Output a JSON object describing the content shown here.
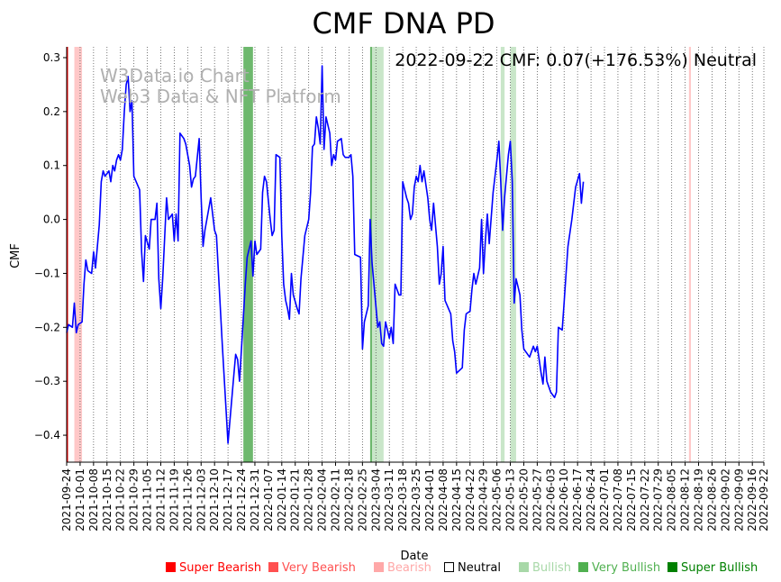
{
  "chart_data": {
    "type": "line",
    "title": "CMF DNA PD",
    "xlabel": "Date",
    "ylabel": "CMF",
    "annotation": "2022-09-22 CMF: 0.07(+176.53%) Neutral",
    "watermark": [
      "W3Data.io Chart",
      "Web3 Data & NFT Platform"
    ],
    "x_range": [
      "2021-09-24",
      "2022-09-22"
    ],
    "ylim": [
      -0.45,
      0.32
    ],
    "yticks": [
      -0.4,
      -0.3,
      -0.2,
      -0.1,
      0.0,
      0.1,
      0.2,
      0.3
    ],
    "ytick_labels": [
      "−0.4",
      "−0.3",
      "−0.2",
      "−0.1",
      "0.0",
      "0.1",
      "0.2",
      "0.3"
    ],
    "xticks": [
      "2021-09-24",
      "2021-10-01",
      "2021-10-08",
      "2021-10-15",
      "2021-10-22",
      "2021-10-29",
      "2021-11-05",
      "2021-11-12",
      "2021-11-19",
      "2021-11-26",
      "2021-12-03",
      "2021-12-10",
      "2021-12-17",
      "2021-12-24",
      "2021-12-31",
      "2022-01-07",
      "2022-01-14",
      "2022-01-21",
      "2022-01-28",
      "2022-02-04",
      "2022-02-11",
      "2022-02-18",
      "2022-02-25",
      "2022-03-04",
      "2022-03-11",
      "2022-03-18",
      "2022-03-25",
      "2022-04-01",
      "2022-04-08",
      "2022-04-15",
      "2022-04-22",
      "2022-04-29",
      "2022-05-06",
      "2022-05-13",
      "2022-05-20",
      "2022-05-27",
      "2022-06-03",
      "2022-06-10",
      "2022-06-17",
      "2022-06-24",
      "2022-07-01",
      "2022-07-08",
      "2022-07-15",
      "2022-07-22",
      "2022-07-29",
      "2022-08-05",
      "2022-08-12",
      "2022-08-19",
      "2022-08-26",
      "2022-09-02",
      "2022-09-09",
      "2022-09-16",
      "2022-09-22"
    ],
    "grid": "vertical-dotted",
    "line_color": "#0000ff",
    "series": [
      {
        "points": [
          [
            "2021-09-24",
            -0.21
          ],
          [
            "2021-09-25",
            -0.195
          ],
          [
            "2021-09-27",
            -0.2
          ],
          [
            "2021-09-28",
            -0.155
          ],
          [
            "2021-09-29",
            -0.21
          ],
          [
            "2021-09-30",
            -0.195
          ],
          [
            "2021-10-02",
            -0.19
          ],
          [
            "2021-10-03",
            -0.12
          ],
          [
            "2021-10-04",
            -0.075
          ],
          [
            "2021-10-05",
            -0.095
          ],
          [
            "2021-10-07",
            -0.1
          ],
          [
            "2021-10-08",
            -0.06
          ],
          [
            "2021-10-09",
            -0.09
          ],
          [
            "2021-10-11",
            -0.01
          ],
          [
            "2021-10-12",
            0.07
          ],
          [
            "2021-10-13",
            0.09
          ],
          [
            "2021-10-14",
            0.08
          ],
          [
            "2021-10-16",
            0.09
          ],
          [
            "2021-10-17",
            0.07
          ],
          [
            "2021-10-18",
            0.1
          ],
          [
            "2021-10-19",
            0.09
          ],
          [
            "2021-10-20",
            0.11
          ],
          [
            "2021-10-21",
            0.12
          ],
          [
            "2021-10-22",
            0.11
          ],
          [
            "2021-10-23",
            0.13
          ],
          [
            "2021-10-24",
            0.2
          ],
          [
            "2021-10-25",
            0.25
          ],
          [
            "2021-10-26",
            0.265
          ],
          [
            "2021-10-27",
            0.2
          ],
          [
            "2021-10-28",
            0.22
          ],
          [
            "2021-10-29",
            0.08
          ],
          [
            "2021-11-01",
            0.055
          ],
          [
            "2021-11-02",
            -0.06
          ],
          [
            "2021-11-03",
            -0.115
          ],
          [
            "2021-11-04",
            -0.03
          ],
          [
            "2021-11-06",
            -0.055
          ],
          [
            "2021-11-07",
            0.0
          ],
          [
            "2021-11-09",
            0.0
          ],
          [
            "2021-11-10",
            0.03
          ],
          [
            "2021-11-11",
            -0.11
          ],
          [
            "2021-11-12",
            -0.165
          ],
          [
            "2021-11-13",
            -0.11
          ],
          [
            "2021-11-15",
            0.04
          ],
          [
            "2021-11-16",
            0.0
          ],
          [
            "2021-11-18",
            0.01
          ],
          [
            "2021-11-19",
            -0.04
          ],
          [
            "2021-11-20",
            0.01
          ],
          [
            "2021-11-21",
            -0.04
          ],
          [
            "2021-11-22",
            0.16
          ],
          [
            "2021-11-24",
            0.15
          ],
          [
            "2021-11-25",
            0.14
          ],
          [
            "2021-11-27",
            0.1
          ],
          [
            "2021-11-28",
            0.06
          ],
          [
            "2021-11-29",
            0.075
          ],
          [
            "2021-11-30",
            0.08
          ],
          [
            "2021-12-02",
            0.15
          ],
          [
            "2021-12-03",
            0.04
          ],
          [
            "2021-12-04",
            -0.05
          ],
          [
            "2021-12-05",
            -0.02
          ],
          [
            "2021-12-08",
            0.04
          ],
          [
            "2021-12-10",
            -0.02
          ],
          [
            "2021-12-11",
            -0.03
          ],
          [
            "2021-12-14",
            -0.23
          ],
          [
            "2021-12-17",
            -0.415
          ],
          [
            "2021-12-20",
            -0.29
          ],
          [
            "2021-12-21",
            -0.25
          ],
          [
            "2021-12-22",
            -0.26
          ],
          [
            "2021-12-23",
            -0.3
          ],
          [
            "2021-12-25",
            -0.18
          ],
          [
            "2021-12-26",
            -0.12
          ],
          [
            "2021-12-27",
            -0.07
          ],
          [
            "2021-12-29",
            -0.04
          ],
          [
            "2021-12-30",
            -0.105
          ],
          [
            "2021-12-31",
            -0.04
          ],
          [
            "2022-01-01",
            -0.065
          ],
          [
            "2022-01-03",
            -0.055
          ],
          [
            "2022-01-04",
            0.05
          ],
          [
            "2022-01-05",
            0.08
          ],
          [
            "2022-01-06",
            0.07
          ],
          [
            "2022-01-08",
            0.0
          ],
          [
            "2022-01-09",
            -0.03
          ],
          [
            "2022-01-10",
            -0.02
          ],
          [
            "2022-01-11",
            0.12
          ],
          [
            "2022-01-13",
            0.115
          ],
          [
            "2022-01-14",
            -0.03
          ],
          [
            "2022-01-15",
            -0.12
          ],
          [
            "2022-01-16",
            -0.15
          ],
          [
            "2022-01-17",
            -0.165
          ],
          [
            "2022-01-18",
            -0.185
          ],
          [
            "2022-01-19",
            -0.1
          ],
          [
            "2022-01-20",
            -0.14
          ],
          [
            "2022-01-22",
            -0.165
          ],
          [
            "2022-01-23",
            -0.175
          ],
          [
            "2022-01-24",
            -0.11
          ],
          [
            "2022-01-26",
            -0.03
          ],
          [
            "2022-01-28",
            0.0
          ],
          [
            "2022-01-29",
            0.05
          ],
          [
            "2022-01-30",
            0.135
          ],
          [
            "2022-01-31",
            0.14
          ],
          [
            "2022-02-01",
            0.19
          ],
          [
            "2022-02-02",
            0.17
          ],
          [
            "2022-02-03",
            0.14
          ],
          [
            "2022-02-04",
            0.285
          ],
          [
            "2022-02-05",
            0.13
          ],
          [
            "2022-02-06",
            0.19
          ],
          [
            "2022-02-07",
            0.175
          ],
          [
            "2022-02-08",
            0.16
          ],
          [
            "2022-02-09",
            0.1
          ],
          [
            "2022-02-10",
            0.12
          ],
          [
            "2022-02-11",
            0.11
          ],
          [
            "2022-02-12",
            0.145
          ],
          [
            "2022-02-14",
            0.15
          ],
          [
            "2022-02-15",
            0.12
          ],
          [
            "2022-02-16",
            0.115
          ],
          [
            "2022-02-18",
            0.115
          ],
          [
            "2022-02-19",
            0.12
          ],
          [
            "2022-02-20",
            0.08
          ],
          [
            "2022-02-21",
            -0.065
          ],
          [
            "2022-02-24",
            -0.07
          ],
          [
            "2022-02-25",
            -0.24
          ],
          [
            "2022-02-26",
            -0.19
          ],
          [
            "2022-02-28",
            -0.16
          ],
          [
            "2022-03-01",
            0.0
          ],
          [
            "2022-03-02",
            -0.08
          ],
          [
            "2022-03-05",
            -0.2
          ],
          [
            "2022-03-06",
            -0.19
          ],
          [
            "2022-03-07",
            -0.23
          ],
          [
            "2022-03-08",
            -0.235
          ],
          [
            "2022-03-09",
            -0.19
          ],
          [
            "2022-03-11",
            -0.22
          ],
          [
            "2022-03-12",
            -0.2
          ],
          [
            "2022-03-13",
            -0.23
          ],
          [
            "2022-03-14",
            -0.12
          ],
          [
            "2022-03-16",
            -0.14
          ],
          [
            "2022-03-17",
            -0.14
          ],
          [
            "2022-03-18",
            0.07
          ],
          [
            "2022-03-20",
            0.04
          ],
          [
            "2022-03-21",
            0.03
          ],
          [
            "2022-03-22",
            0.0
          ],
          [
            "2022-03-23",
            0.01
          ],
          [
            "2022-03-24",
            0.06
          ],
          [
            "2022-03-25",
            0.08
          ],
          [
            "2022-03-26",
            0.07
          ],
          [
            "2022-03-27",
            0.1
          ],
          [
            "2022-03-28",
            0.07
          ],
          [
            "2022-03-29",
            0.09
          ],
          [
            "2022-03-31",
            0.04
          ],
          [
            "2022-04-01",
            0.0
          ],
          [
            "2022-04-02",
            -0.02
          ],
          [
            "2022-04-03",
            0.03
          ],
          [
            "2022-04-05",
            -0.05
          ],
          [
            "2022-04-06",
            -0.12
          ],
          [
            "2022-04-07",
            -0.1
          ],
          [
            "2022-04-08",
            -0.05
          ],
          [
            "2022-04-09",
            -0.15
          ],
          [
            "2022-04-12",
            -0.175
          ],
          [
            "2022-04-13",
            -0.225
          ],
          [
            "2022-04-14",
            -0.245
          ],
          [
            "2022-04-15",
            -0.285
          ],
          [
            "2022-04-18",
            -0.275
          ],
          [
            "2022-04-19",
            -0.205
          ],
          [
            "2022-04-20",
            -0.175
          ],
          [
            "2022-04-22",
            -0.17
          ],
          [
            "2022-04-23",
            -0.13
          ],
          [
            "2022-04-24",
            -0.1
          ],
          [
            "2022-04-25",
            -0.12
          ],
          [
            "2022-04-27",
            -0.09
          ],
          [
            "2022-04-28",
            0.0
          ],
          [
            "2022-04-29",
            -0.1
          ],
          [
            "2022-04-30",
            -0.04
          ],
          [
            "2022-05-01",
            0.01
          ],
          [
            "2022-05-02",
            -0.045
          ],
          [
            "2022-05-04",
            0.05
          ],
          [
            "2022-05-05",
            0.08
          ],
          [
            "2022-05-06",
            0.11
          ],
          [
            "2022-05-07",
            0.145
          ],
          [
            "2022-05-08",
            0.07
          ],
          [
            "2022-05-09",
            -0.02
          ],
          [
            "2022-05-10",
            0.04
          ],
          [
            "2022-05-12",
            0.12
          ],
          [
            "2022-05-13",
            0.145
          ],
          [
            "2022-05-14",
            0.07
          ],
          [
            "2022-05-15",
            -0.155
          ],
          [
            "2022-05-16",
            -0.11
          ],
          [
            "2022-05-17",
            -0.125
          ],
          [
            "2022-05-18",
            -0.14
          ],
          [
            "2022-05-19",
            -0.205
          ],
          [
            "2022-05-20",
            -0.24
          ],
          [
            "2022-05-21",
            -0.245
          ],
          [
            "2022-05-23",
            -0.255
          ],
          [
            "2022-05-24",
            -0.245
          ],
          [
            "2022-05-25",
            -0.235
          ],
          [
            "2022-05-26",
            -0.245
          ],
          [
            "2022-05-27",
            -0.235
          ],
          [
            "2022-05-29",
            -0.285
          ],
          [
            "2022-05-30",
            -0.305
          ],
          [
            "2022-05-31",
            -0.255
          ],
          [
            "2022-06-01",
            -0.3
          ],
          [
            "2022-06-03",
            -0.32
          ],
          [
            "2022-06-05",
            -0.33
          ],
          [
            "2022-06-06",
            -0.32
          ],
          [
            "2022-06-07",
            -0.2
          ],
          [
            "2022-06-09",
            -0.205
          ],
          [
            "2022-06-10",
            -0.155
          ],
          [
            "2022-06-11",
            -0.1
          ],
          [
            "2022-06-12",
            -0.05
          ],
          [
            "2022-06-14",
            0.0
          ],
          [
            "2022-06-15",
            0.03
          ],
          [
            "2022-06-16",
            0.06
          ],
          [
            "2022-06-18",
            0.085
          ],
          [
            "2022-06-19",
            0.03
          ],
          [
            "2022-06-20",
            0.07
          ]
        ]
      }
    ],
    "bands": [
      {
        "start": "2021-09-24",
        "end": "2021-09-24.5",
        "category": "Super Bearish"
      },
      {
        "start": "2021-09-28",
        "end": "2021-10-02",
        "category": "Bearish"
      },
      {
        "start": "2021-12-25",
        "end": "2021-12-30",
        "category": "Very Bullish"
      },
      {
        "start": "2022-03-01",
        "end": "2022-03-02",
        "category": "Very Bullish"
      },
      {
        "start": "2022-03-02",
        "end": "2022-03-08",
        "category": "Bullish"
      },
      {
        "start": "2022-05-08",
        "end": "2022-05-10",
        "category": "Bullish"
      },
      {
        "start": "2022-05-13",
        "end": "2022-05-16",
        "category": "Bullish"
      },
      {
        "start": "2022-08-14",
        "end": "2022-08-15",
        "category": "Bearish"
      }
    ],
    "legend": {
      "placement": "bottom",
      "items": [
        {
          "label": "Super Bearish",
          "color": "#ff0000",
          "marker": "filled"
        },
        {
          "label": "Very Bearish",
          "color": "#ff5050",
          "marker": "filled"
        },
        {
          "label": "Bearish",
          "color": "#ffa8a8",
          "marker": "filled"
        },
        {
          "label": "Neutral",
          "color": "#000000",
          "marker": "hollow"
        },
        {
          "label": "Bullish",
          "color": "#a8d8a8",
          "marker": "filled"
        },
        {
          "label": "Very Bullish",
          "color": "#50b050",
          "marker": "filled"
        },
        {
          "label": "Super Bullish",
          "color": "#008000",
          "marker": "filled"
        }
      ]
    },
    "band_colors": {
      "Super Bearish": "#ff0000",
      "Very Bearish": "#ff5050",
      "Bearish": "#ffc8c8",
      "Bullish": "#c9e6c9",
      "Very Bullish": "#6db86d",
      "Super Bullish": "#008000"
    }
  }
}
